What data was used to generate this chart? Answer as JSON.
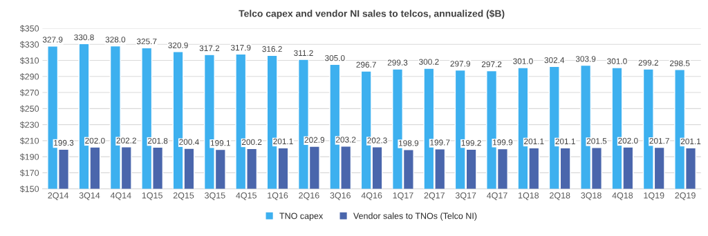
{
  "chart_data": {
    "type": "bar",
    "title": "Telco capex and vendor NI sales to telcos, annualized ($B)",
    "categories": [
      "2Q14",
      "3Q14",
      "4Q14",
      "1Q15",
      "2Q15",
      "3Q15",
      "4Q15",
      "1Q16",
      "2Q16",
      "3Q16",
      "4Q16",
      "1Q17",
      "2Q17",
      "3Q17",
      "4Q17",
      "1Q18",
      "2Q18",
      "3Q18",
      "4Q18",
      "1Q19",
      "2Q19"
    ],
    "series": [
      {
        "name": "TNO capex",
        "color": "#3db0ef",
        "values": [
          327.9,
          330.8,
          328.0,
          325.7,
          320.9,
          317.2,
          317.9,
          316.2,
          311.2,
          305.0,
          296.7,
          299.3,
          300.2,
          297.9,
          297.2,
          301.0,
          302.4,
          303.9,
          301.0,
          299.2,
          298.5
        ],
        "value_labels": [
          "327.9",
          "330.8",
          "328.0",
          "325.7",
          "320.9",
          "317.2",
          "317.9",
          "316.2",
          "311.2",
          "305.0",
          "296.7",
          "299.3",
          "300.2",
          "297.9",
          "297.2",
          "301.0",
          "302.4",
          "303.9",
          "301.0",
          "299.2",
          "298.5"
        ]
      },
      {
        "name": "Vendor sales to TNOs (Telco NI)",
        "color": "#4a66ac",
        "values": [
          199.3,
          202.0,
          202.2,
          201.8,
          200.4,
          199.1,
          200.2,
          201.1,
          202.9,
          203.2,
          202.3,
          198.9,
          199.7,
          199.2,
          199.9,
          201.1,
          201.1,
          201.5,
          202.0,
          201.7,
          201.1
        ],
        "value_labels": [
          "199.3",
          "202.0",
          "202.2",
          "201.8",
          "200.4",
          "199.1",
          "200.2",
          "201.1",
          "202.9",
          "203.2",
          "202.3",
          "198.9",
          "199.7",
          "199.2",
          "199.9",
          "201.1",
          "201.1",
          "201.5",
          "202.0",
          "201.7",
          "201.1"
        ]
      }
    ],
    "ylim": [
      150,
      350
    ],
    "yticks": [
      {
        "value": 150,
        "label": "$150"
      },
      {
        "value": 170,
        "label": "$170"
      },
      {
        "value": 190,
        "label": "$190"
      },
      {
        "value": 210,
        "label": "$210"
      },
      {
        "value": 230,
        "label": "$230"
      },
      {
        "value": 250,
        "label": "$250"
      },
      {
        "value": 270,
        "label": "$270"
      },
      {
        "value": 290,
        "label": "$290"
      },
      {
        "value": 310,
        "label": "$310"
      },
      {
        "value": 330,
        "label": "$330"
      },
      {
        "value": 350,
        "label": "$350"
      }
    ],
    "grid": "y",
    "legend": "bottom"
  }
}
